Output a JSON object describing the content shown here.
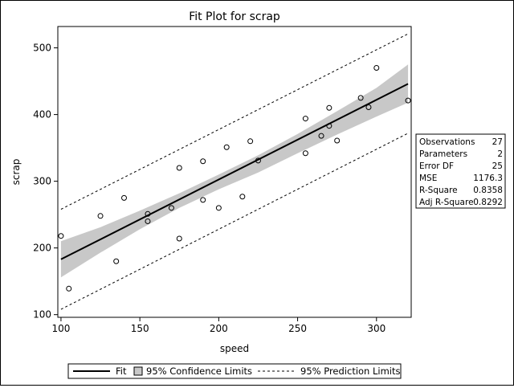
{
  "chart_data": {
    "type": "scatter",
    "title": "Fit Plot for scrap",
    "xlabel": "speed",
    "ylabel": "scrap",
    "xlim": [
      98,
      322
    ],
    "ylim": [
      96,
      532
    ],
    "xticks": [
      100,
      150,
      200,
      250,
      300
    ],
    "yticks": [
      100,
      200,
      300,
      400,
      500
    ],
    "grid": false,
    "legend_position": "bottom",
    "points": [
      {
        "x": 100,
        "y": 218
      },
      {
        "x": 105,
        "y": 139
      },
      {
        "x": 125,
        "y": 248
      },
      {
        "x": 135,
        "y": 180
      },
      {
        "x": 140,
        "y": 275
      },
      {
        "x": 155,
        "y": 251
      },
      {
        "x": 155,
        "y": 240
      },
      {
        "x": 170,
        "y": 260
      },
      {
        "x": 175,
        "y": 320
      },
      {
        "x": 175,
        "y": 214
      },
      {
        "x": 190,
        "y": 330
      },
      {
        "x": 190,
        "y": 272
      },
      {
        "x": 200,
        "y": 260
      },
      {
        "x": 205,
        "y": 351
      },
      {
        "x": 215,
        "y": 277
      },
      {
        "x": 220,
        "y": 360
      },
      {
        "x": 225,
        "y": 331
      },
      {
        "x": 255,
        "y": 394
      },
      {
        "x": 255,
        "y": 342
      },
      {
        "x": 265,
        "y": 368
      },
      {
        "x": 270,
        "y": 410
      },
      {
        "x": 270,
        "y": 383
      },
      {
        "x": 275,
        "y": 361
      },
      {
        "x": 290,
        "y": 425
      },
      {
        "x": 295,
        "y": 411
      },
      {
        "x": 300,
        "y": 470
      },
      {
        "x": 320,
        "y": 421
      }
    ],
    "fit": {
      "x": [
        100,
        320
      ],
      "y": [
        183,
        446
      ]
    },
    "confidence_band": {
      "x": [
        100,
        125,
        150,
        175,
        200,
        225,
        250,
        275,
        300,
        320
      ],
      "lower": [
        156,
        193,
        228,
        260,
        288,
        313,
        342,
        370,
        397,
        418
      ],
      "upper": [
        210,
        231,
        256,
        282,
        310,
        339,
        371,
        405,
        440,
        475
      ]
    },
    "prediction_band": {
      "x": [
        100,
        320
      ],
      "lower": [
        108,
        372
      ],
      "upper": [
        258,
        521
      ]
    },
    "colors": {
      "fit": "#000000",
      "confidence_fill": "#c8c8c8",
      "prediction": "#000000",
      "points": "#000000"
    },
    "stats_table": [
      {
        "label": "Observations",
        "value": "27"
      },
      {
        "label": "Parameters",
        "value": "2"
      },
      {
        "label": "Error DF",
        "value": "25"
      },
      {
        "label": "MSE",
        "value": "1176.3"
      },
      {
        "label": "R-Square",
        "value": "0.8358"
      },
      {
        "label": "Adj R-Square",
        "value": "0.8292"
      }
    ],
    "legend": {
      "fit": "Fit",
      "confidence": "95% Confidence Limits",
      "prediction": "95% Prediction Limits"
    }
  }
}
